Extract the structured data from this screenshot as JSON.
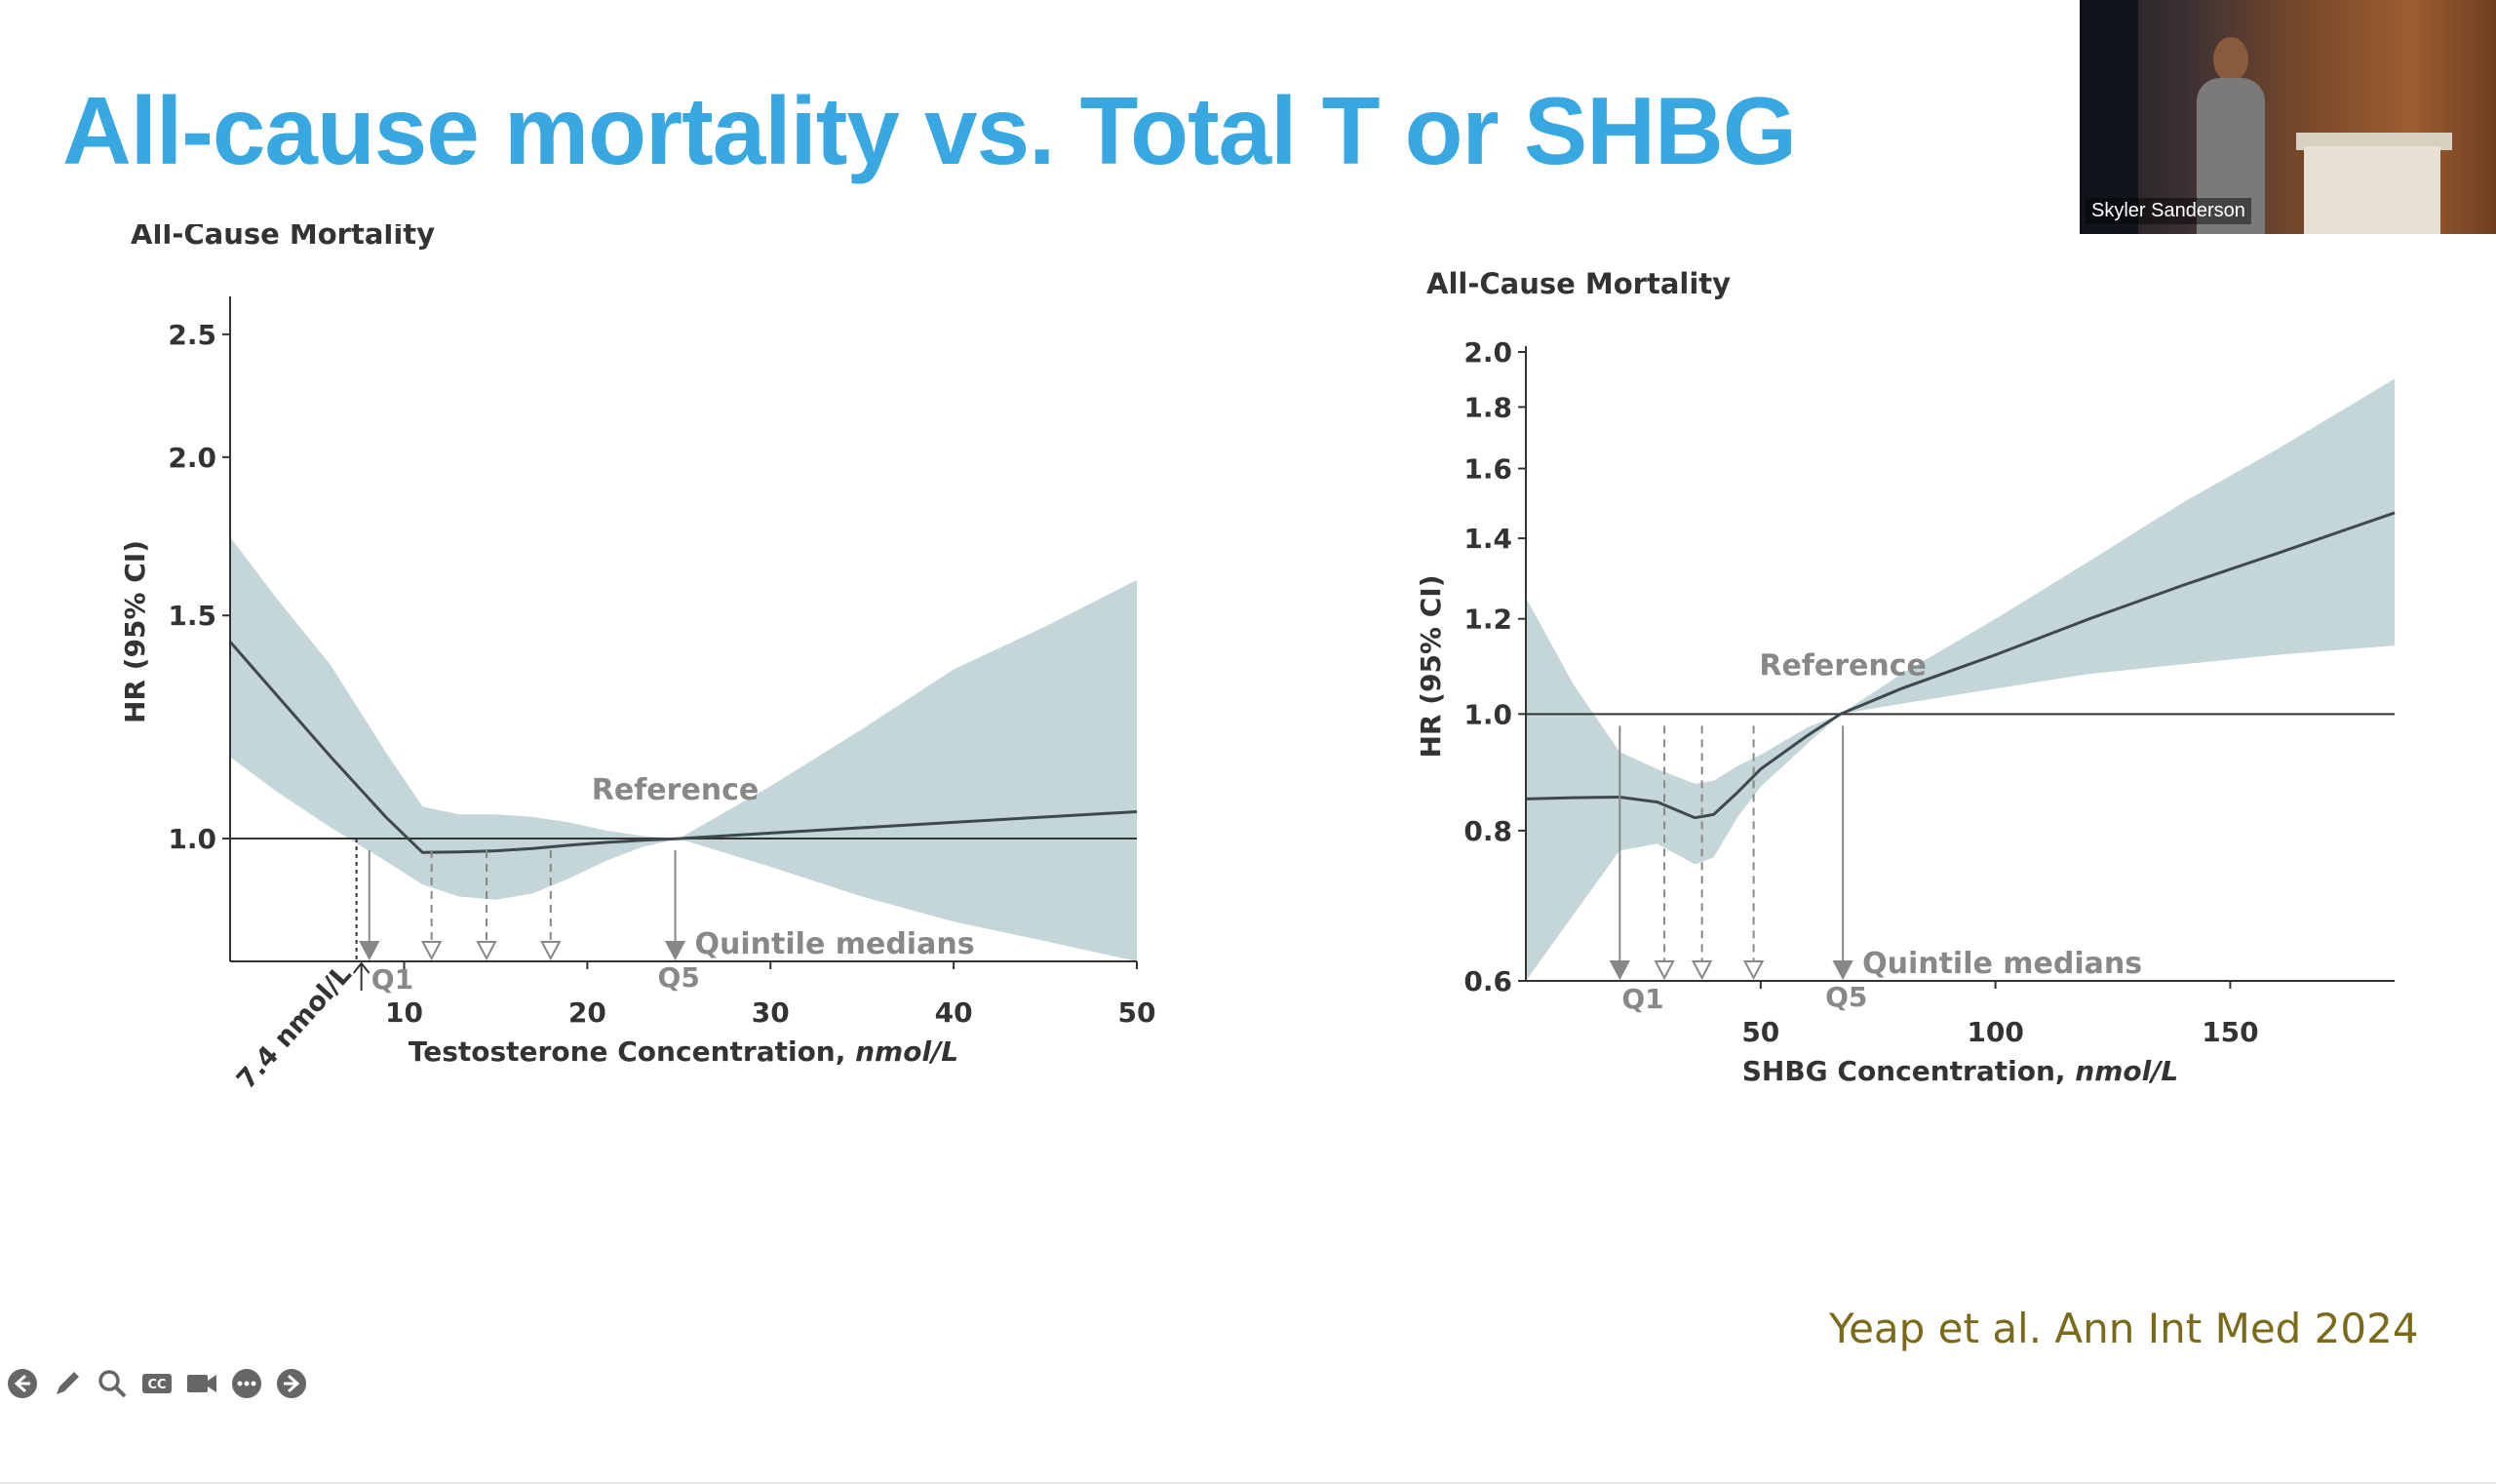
{
  "slide": {
    "title": "All-cause mortality vs. Total T or SHBG",
    "citation": "Yeap et al. Ann Int Med 2024"
  },
  "video": {
    "speaker_name": "Skyler Sanderson"
  },
  "colors": {
    "title": "#3aa8e0",
    "band": "#c4d6d8",
    "line": "#3d4a4d",
    "citation": "#7a6a1a"
  },
  "controls": [
    {
      "name": "previous-slide-button",
      "icon": "arrow-left-icon"
    },
    {
      "name": "pen-tool-button",
      "icon": "pencil-icon"
    },
    {
      "name": "zoom-button",
      "icon": "magnifier-icon"
    },
    {
      "name": "captions-button",
      "icon": "cc-icon"
    },
    {
      "name": "video-button",
      "icon": "camera-icon"
    },
    {
      "name": "more-options-button",
      "icon": "ellipsis-icon"
    },
    {
      "name": "next-slide-button",
      "icon": "arrow-right-icon"
    }
  ],
  "chart_data": [
    {
      "type": "line",
      "title": "All-Cause Mortality",
      "xlabel": "Testosterone Concentration,",
      "xlabel_unit": "nmol/L",
      "ylabel": "HR (95% CI)",
      "x_scale": "linear",
      "y_scale": "log",
      "xlim": [
        0.5,
        50
      ],
      "ylim": [
        0.8,
        2.65
      ],
      "x_ticks": [
        10,
        20,
        30,
        40,
        50
      ],
      "y_ticks": [
        1.0,
        1.5,
        2.0,
        2.5
      ],
      "y_tick_labels": [
        "1.0",
        "1.5",
        "2.0",
        "2.5"
      ],
      "series": [
        {
          "name": "HR",
          "x": [
            0.5,
            3,
            6,
            9,
            11,
            13,
            15,
            17,
            19,
            21,
            23,
            25,
            30,
            35,
            40,
            45,
            50
          ],
          "y": [
            1.43,
            1.3,
            1.16,
            1.04,
            0.975,
            0.976,
            0.978,
            0.982,
            0.988,
            0.993,
            0.997,
            1.0,
            1.01,
            1.02,
            1.03,
            1.04,
            1.05
          ]
        }
      ],
      "ci_band": {
        "x": [
          0.5,
          3,
          6,
          9,
          11,
          13,
          15,
          17,
          19,
          21,
          23,
          25,
          30,
          35,
          40,
          45,
          50
        ],
        "lower": [
          1.16,
          1.09,
          1.02,
          0.96,
          0.92,
          0.9,
          0.895,
          0.905,
          0.93,
          0.96,
          0.985,
          1.0,
          0.95,
          0.9,
          0.86,
          0.83,
          0.8
        ],
        "upper": [
          1.73,
          1.55,
          1.37,
          1.17,
          1.06,
          1.045,
          1.045,
          1.04,
          1.03,
          1.015,
          1.005,
          1.0,
          1.1,
          1.22,
          1.36,
          1.47,
          1.6
        ]
      },
      "reference_line": 1.0,
      "reference_label": "Reference",
      "quintile_label": "Quintile medians",
      "quintile_medians_x": [
        8.1,
        11.5,
        14.5,
        18,
        24.8
      ],
      "quintile_labels": [
        "Q1",
        "Q5"
      ],
      "threshold_x": 7.4,
      "threshold_label": "7.4 nmol/L"
    },
    {
      "type": "line",
      "title": "All-Cause Mortality",
      "xlabel": "SHBG Concentration,",
      "xlabel_unit": "nmol/L",
      "ylabel": "HR (95% CI)",
      "x_scale": "linear",
      "y_scale": "log",
      "xlim": [
        0,
        185
      ],
      "ylim": [
        0.6,
        2.0
      ],
      "x_ticks": [
        50,
        100,
        150
      ],
      "y_ticks": [
        0.6,
        0.8,
        1.0,
        1.2,
        1.4,
        1.6,
        1.8,
        2.0
      ],
      "y_tick_labels": [
        "0.6",
        "0.8",
        "1.0",
        "1.2",
        "1.4",
        "1.6",
        "1.8",
        "2.0"
      ],
      "series": [
        {
          "name": "HR",
          "x": [
            0,
            10,
            20,
            28,
            36,
            40,
            45,
            50,
            60,
            67,
            80,
            100,
            120,
            140,
            160,
            185
          ],
          "y": [
            0.85,
            0.852,
            0.853,
            0.845,
            0.82,
            0.825,
            0.86,
            0.9,
            0.96,
            1.0,
            1.05,
            1.12,
            1.2,
            1.28,
            1.36,
            1.47
          ]
        }
      ],
      "ci_band": {
        "x": [
          0,
          10,
          20,
          28,
          36,
          40,
          45,
          50,
          60,
          67,
          80,
          100,
          120,
          140,
          160,
          185
        ],
        "lower": [
          0.6,
          0.68,
          0.77,
          0.78,
          0.75,
          0.76,
          0.82,
          0.87,
          0.945,
          1.0,
          1.02,
          1.05,
          1.08,
          1.1,
          1.12,
          1.14
        ],
        "upper": [
          1.25,
          1.06,
          0.93,
          0.9,
          0.875,
          0.88,
          0.905,
          0.925,
          0.975,
          1.0,
          1.08,
          1.2,
          1.34,
          1.5,
          1.66,
          1.9
        ]
      },
      "reference_line": 1.0,
      "reference_label": "Reference",
      "quintile_label": "Quintile medians",
      "quintile_medians_x": [
        20,
        29.5,
        37.5,
        48.5,
        67.5
      ],
      "quintile_labels": [
        "Q1",
        "Q5"
      ]
    }
  ]
}
